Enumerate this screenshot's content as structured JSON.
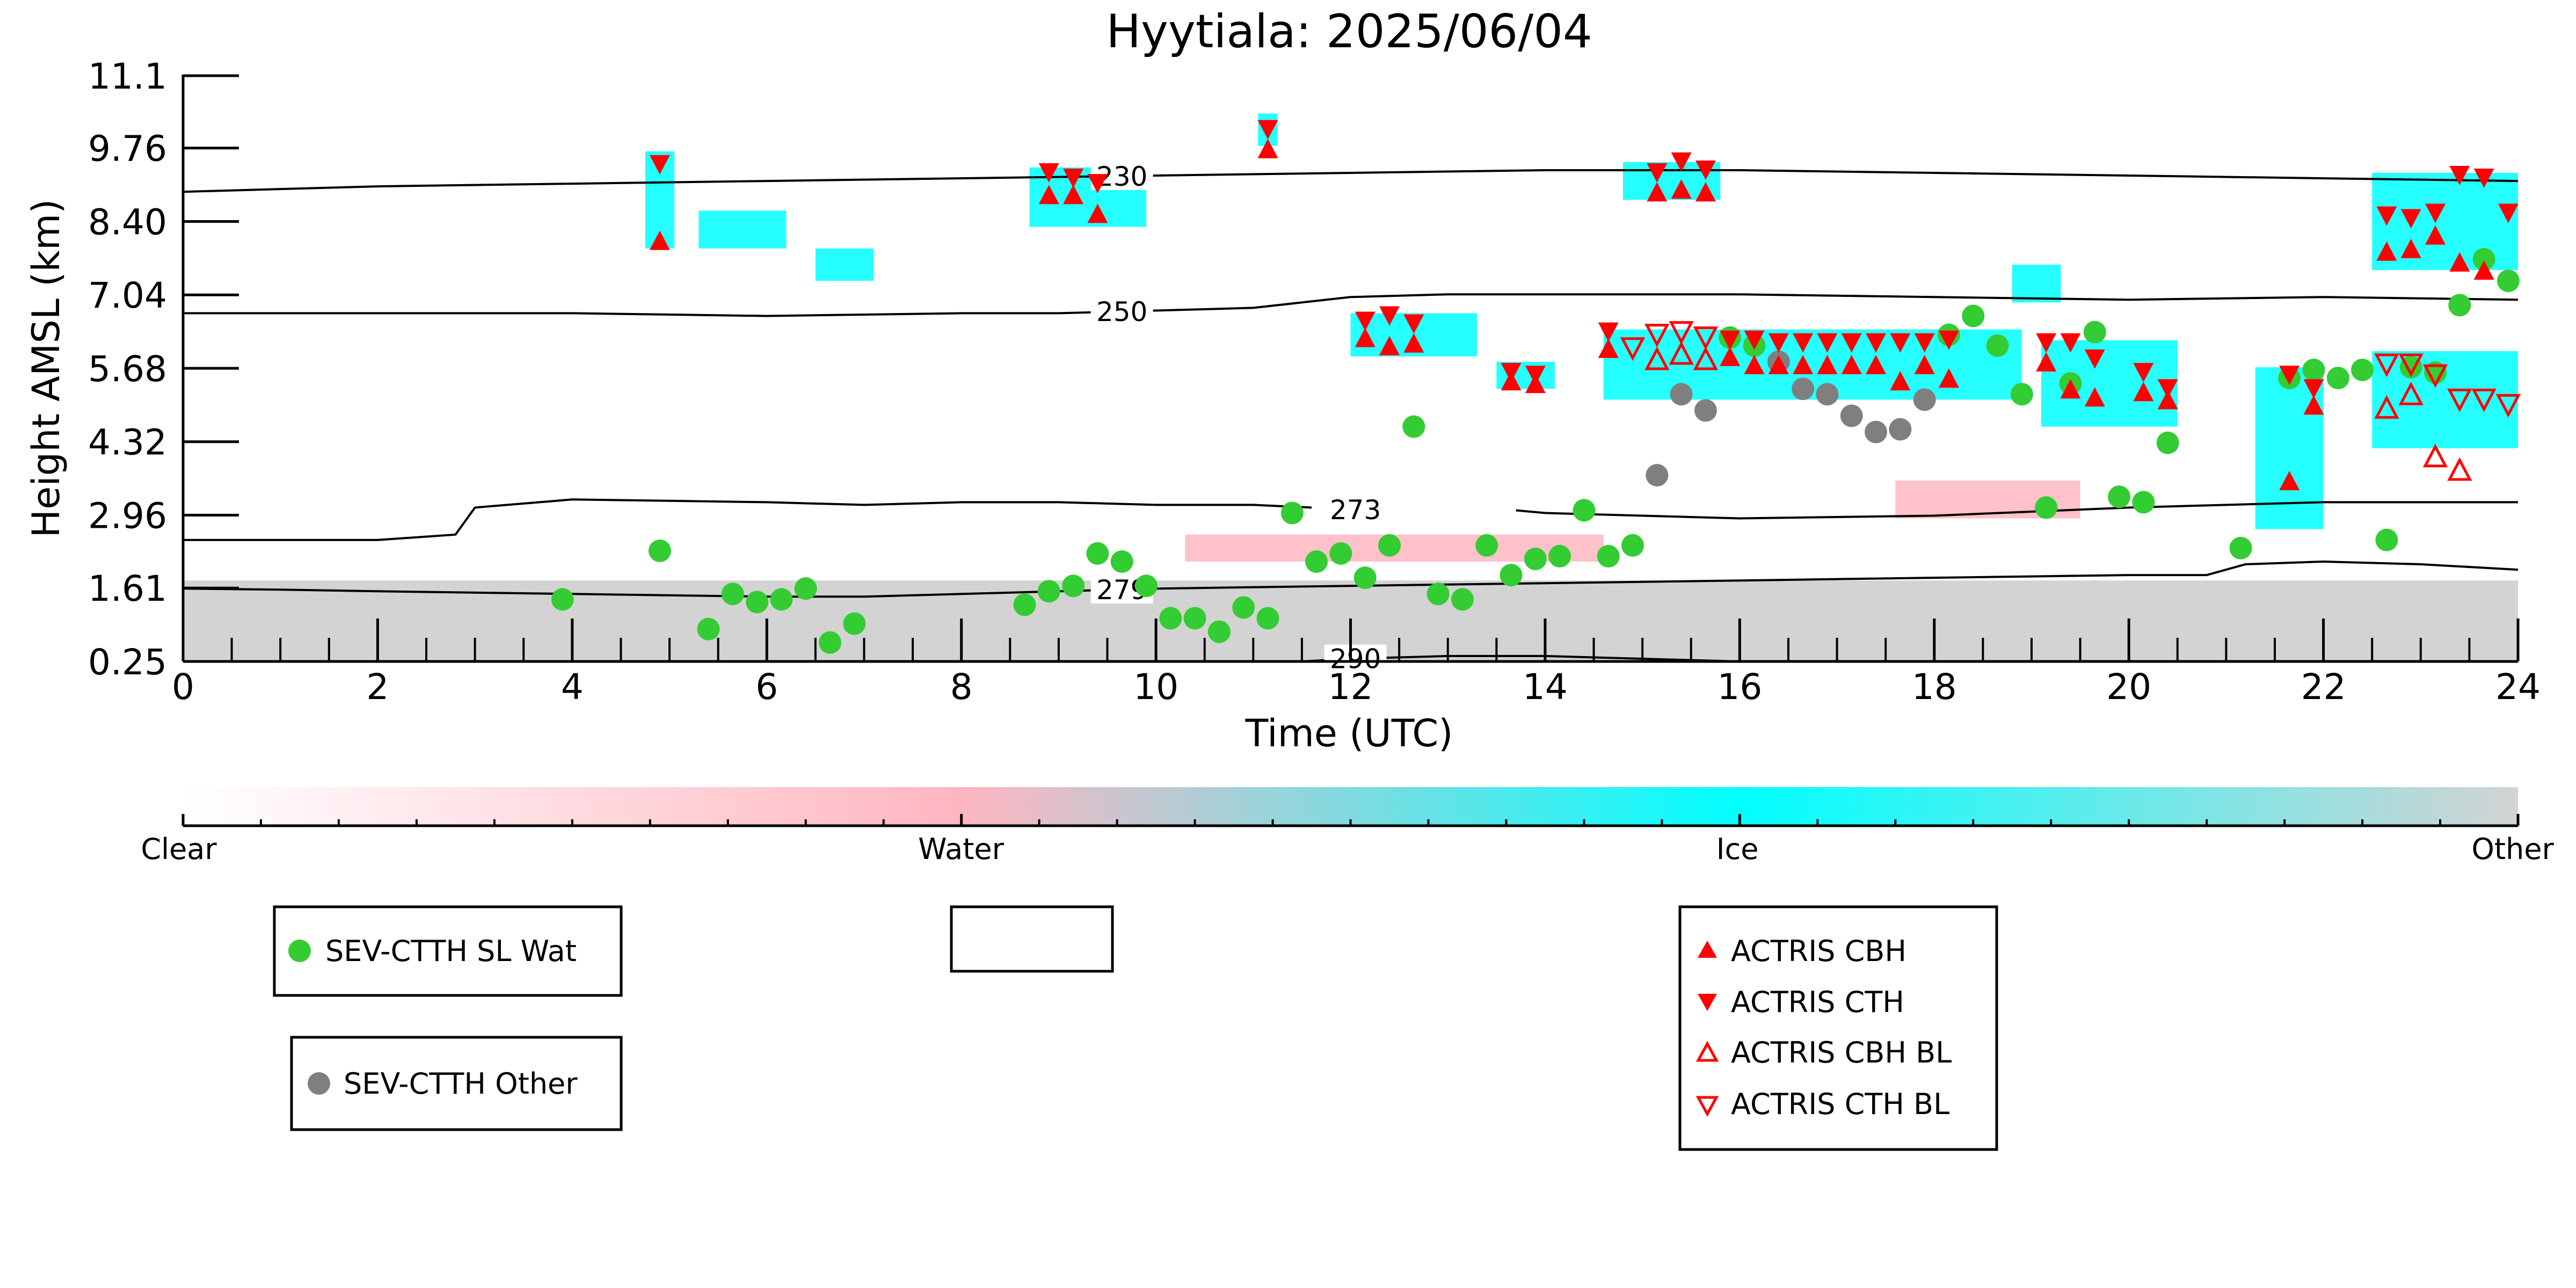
{
  "chart_data": {
    "type": "scatter",
    "title": "Hyytiala: 2025/06/04",
    "xlabel": "Time (UTC)",
    "ylabel": "Height AMSL (km)",
    "xlim": [
      0,
      24
    ],
    "ylim": [
      0.25,
      11.1
    ],
    "x_ticks": [
      "0",
      "2",
      "4",
      "6",
      "8",
      "10",
      "12",
      "14",
      "16",
      "18",
      "20",
      "22",
      "24"
    ],
    "y_ticks": [
      "0.25",
      "1.61",
      "2.96",
      "4.32",
      "5.68",
      "7.04",
      "8.40",
      "9.76",
      "11.1"
    ],
    "grid": false,
    "colorbar": {
      "labels": [
        "Clear",
        "Water",
        "Ice",
        "Other"
      ],
      "colors": {
        "clear": "#ffffff",
        "water": "#ffb6c1",
        "ice": "#00ffff",
        "other": "#d3d3d3"
      }
    },
    "contours": [
      {
        "label": "230",
        "x": [
          0,
          2,
          4,
          6,
          8,
          10,
          12,
          14,
          16,
          18,
          20,
          22,
          24
        ],
        "y": [
          8.95,
          9.05,
          9.1,
          9.15,
          9.2,
          9.25,
          9.3,
          9.35,
          9.35,
          9.3,
          9.25,
          9.2,
          9.15
        ]
      },
      {
        "label": "250",
        "x": [
          0,
          2,
          4,
          6,
          8,
          9,
          10,
          11,
          12,
          13,
          14,
          16,
          18,
          20,
          22,
          24
        ],
        "y": [
          6.7,
          6.7,
          6.7,
          6.65,
          6.7,
          6.7,
          6.75,
          6.8,
          7.0,
          7.05,
          7.05,
          7.05,
          7.0,
          6.95,
          7.0,
          6.95
        ]
      },
      {
        "label": "273",
        "x": [
          0,
          2,
          2.8,
          3,
          4,
          6,
          7,
          8,
          9,
          10,
          11,
          11.6
        ],
        "y": [
          2.5,
          2.5,
          2.6,
          3.1,
          3.25,
          3.2,
          3.15,
          3.2,
          3.2,
          3.15,
          3.15,
          3.1
        ]
      },
      {
        "label": "273",
        "x": [
          13.7,
          14,
          15,
          16,
          18,
          20,
          22,
          24
        ],
        "y": [
          3.05,
          3.0,
          2.95,
          2.9,
          2.95,
          3.1,
          3.2,
          3.2
        ]
      },
      {
        "label": "279",
        "x": [
          0,
          1,
          2,
          4,
          6,
          7,
          8,
          10,
          12,
          14,
          16,
          18,
          20,
          20.8,
          21.2,
          22,
          23,
          24
        ],
        "y": [
          1.6,
          1.58,
          1.55,
          1.5,
          1.45,
          1.45,
          1.5,
          1.6,
          1.65,
          1.7,
          1.75,
          1.8,
          1.85,
          1.85,
          2.05,
          2.1,
          2.05,
          1.95
        ]
      },
      {
        "label": "290",
        "x": [
          11.5,
          12,
          13,
          14,
          15,
          16
        ],
        "y": [
          0.25,
          0.3,
          0.35,
          0.35,
          0.3,
          0.25
        ]
      }
    ],
    "cloud_patches": [
      {
        "class": "ice",
        "x": [
          4.75,
          5.05
        ],
        "y": [
          7.9,
          9.7
        ]
      },
      {
        "class": "ice",
        "x": [
          5.3,
          6.2
        ],
        "y": [
          7.9,
          8.6
        ]
      },
      {
        "class": "ice",
        "x": [
          6.5,
          7.1
        ],
        "y": [
          7.3,
          7.9
        ]
      },
      {
        "class": "ice",
        "x": [
          8.7,
          9.9
        ],
        "y": [
          8.3,
          9.4
        ]
      },
      {
        "class": "ice",
        "x": [
          11.05,
          11.25
        ],
        "y": [
          9.8,
          10.4
        ]
      },
      {
        "class": "ice",
        "x": [
          12.0,
          13.3
        ],
        "y": [
          5.9,
          6.7
        ]
      },
      {
        "class": "ice",
        "x": [
          13.5,
          14.1
        ],
        "y": [
          5.3,
          5.8
        ]
      },
      {
        "class": "ice",
        "x": [
          14.8,
          15.8
        ],
        "y": [
          8.8,
          9.5
        ]
      },
      {
        "class": "ice",
        "x": [
          14.6,
          18.9
        ],
        "y": [
          5.1,
          6.4
        ]
      },
      {
        "class": "ice",
        "x": [
          18.8,
          19.3
        ],
        "y": [
          6.9,
          7.6
        ]
      },
      {
        "class": "ice",
        "x": [
          19.1,
          20.5
        ],
        "y": [
          4.6,
          6.2
        ]
      },
      {
        "class": "ice",
        "x": [
          21.3,
          22.0
        ],
        "y": [
          2.7,
          5.7
        ]
      },
      {
        "class": "ice",
        "x": [
          22.5,
          24.0
        ],
        "y": [
          4.2,
          6.0
        ]
      },
      {
        "class": "ice",
        "x": [
          22.5,
          24.0
        ],
        "y": [
          7.5,
          9.3
        ]
      },
      {
        "class": "water",
        "x": [
          10.3,
          14.6
        ],
        "y": [
          2.1,
          2.6
        ]
      },
      {
        "class": "water",
        "x": [
          17.6,
          19.5
        ],
        "y": [
          2.9,
          3.6
        ]
      },
      {
        "class": "other",
        "x": [
          0,
          24
        ],
        "y": [
          0.25,
          1.75
        ]
      }
    ],
    "series": [
      {
        "name": "SEV-CTTH SL Wat",
        "marker": "circle",
        "color": "#33cc33",
        "x": [
          3.9,
          4.9,
          5.4,
          5.65,
          5.9,
          6.15,
          6.4,
          6.65,
          6.9,
          8.65,
          8.9,
          9.15,
          9.4,
          9.65,
          9.9,
          10.15,
          10.4,
          10.65,
          10.9,
          11.15,
          11.4,
          11.65,
          11.9,
          12.15,
          12.4,
          12.65,
          12.9,
          13.15,
          13.4,
          13.65,
          13.9,
          14.15,
          14.4,
          14.65,
          14.9,
          15.9,
          16.15,
          18.15,
          18.4,
          18.65,
          18.9,
          19.15,
          19.4,
          19.65,
          19.9,
          20.15,
          20.4,
          21.15,
          21.65,
          21.9,
          22.15,
          22.4,
          22.65,
          22.9,
          23.15,
          23.4,
          23.65,
          23.9
        ],
        "y": [
          1.4,
          2.3,
          0.85,
          1.5,
          1.35,
          1.4,
          1.6,
          0.6,
          0.95,
          1.3,
          1.55,
          1.65,
          2.25,
          2.1,
          1.65,
          1.05,
          1.05,
          0.8,
          1.25,
          1.05,
          3.0,
          2.1,
          2.25,
          1.8,
          2.4,
          4.6,
          1.5,
          1.4,
          2.4,
          1.85,
          2.15,
          2.2,
          3.05,
          2.2,
          2.4,
          6.25,
          6.1,
          6.3,
          6.65,
          6.1,
          5.2,
          3.1,
          5.4,
          6.35,
          3.3,
          3.2,
          4.3,
          2.35,
          5.5,
          5.65,
          5.5,
          5.65,
          2.5,
          5.7,
          5.6,
          6.85,
          7.7,
          7.3
        ]
      },
      {
        "name": "SEV-CTTH Other",
        "marker": "circle",
        "color": "#7f7f7f",
        "x": [
          15.15,
          15.4,
          15.65,
          16.4,
          16.65,
          16.9,
          17.15,
          17.4,
          17.65,
          17.9
        ],
        "y": [
          3.7,
          5.2,
          4.9,
          5.8,
          5.3,
          5.2,
          4.8,
          4.5,
          4.55,
          5.1
        ]
      },
      {
        "name": "ACTRIS CBH",
        "marker": "triangle-up",
        "color": "#ff0000",
        "filled": true,
        "x": [
          4.9,
          8.9,
          9.15,
          9.4,
          11.15,
          12.15,
          12.4,
          12.65,
          13.65,
          13.9,
          14.65,
          15.15,
          15.4,
          15.65,
          15.9,
          16.15,
          16.4,
          16.65,
          16.9,
          17.15,
          17.4,
          17.65,
          17.9,
          18.15,
          19.15,
          19.4,
          19.65,
          20.15,
          20.4,
          21.65,
          21.9,
          22.65,
          22.9,
          23.15,
          23.4,
          23.65
        ],
        "y": [
          8.05,
          8.9,
          8.9,
          8.55,
          9.75,
          6.25,
          6.1,
          6.15,
          5.45,
          5.4,
          6.05,
          8.95,
          9.0,
          8.95,
          5.9,
          5.75,
          5.75,
          5.75,
          5.75,
          5.75,
          5.75,
          5.45,
          5.75,
          5.5,
          5.8,
          5.3,
          5.15,
          5.25,
          5.1,
          3.6,
          5.0,
          7.85,
          7.9,
          8.15,
          7.65,
          7.5
        ]
      },
      {
        "name": "ACTRIS CTH",
        "marker": "triangle-down",
        "color": "#ff0000",
        "filled": true,
        "x": [
          4.9,
          8.9,
          9.15,
          9.4,
          11.15,
          12.15,
          12.4,
          12.65,
          13.65,
          13.9,
          14.65,
          15.15,
          15.4,
          15.65,
          15.9,
          16.15,
          16.4,
          16.65,
          16.9,
          17.15,
          17.4,
          17.65,
          17.9,
          18.15,
          19.15,
          19.4,
          19.65,
          20.15,
          20.4,
          21.65,
          21.9,
          22.65,
          22.9,
          23.15,
          23.4,
          23.65,
          23.9
        ],
        "y": [
          9.45,
          9.3,
          9.2,
          9.1,
          10.1,
          6.55,
          6.65,
          6.5,
          5.6,
          5.55,
          6.35,
          9.3,
          9.5,
          9.35,
          6.2,
          6.2,
          6.15,
          6.15,
          6.15,
          6.15,
          6.15,
          6.15,
          6.15,
          6.2,
          6.15,
          6.15,
          5.85,
          5.6,
          5.3,
          5.55,
          5.3,
          8.5,
          8.45,
          8.55,
          9.25,
          9.2,
          8.55
        ]
      },
      {
        "name": "ACTRIS CBH BL",
        "marker": "triangle-up",
        "color": "#ff0000",
        "filled": false,
        "x": [
          15.15,
          15.4,
          15.65,
          22.65,
          22.9,
          23.15,
          23.4
        ],
        "y": [
          5.85,
          5.95,
          5.85,
          4.95,
          5.2,
          4.05,
          3.8
        ]
      },
      {
        "name": "ACTRIS CTH BL",
        "marker": "triangle-down",
        "color": "#ff0000",
        "filled": false,
        "x": [
          14.9,
          15.15,
          15.4,
          15.65,
          22.65,
          22.9,
          23.15,
          23.4,
          23.65,
          23.9
        ],
        "y": [
          6.05,
          6.3,
          6.35,
          6.25,
          5.75,
          5.75,
          5.55,
          5.1,
          5.1,
          5.0
        ]
      }
    ]
  },
  "legends": {
    "wat": {
      "label": "SEV-CTTH SL Wat"
    },
    "other": {
      "label": "SEV-CTTH Other"
    },
    "actris": [
      {
        "label": "ACTRIS CBH"
      },
      {
        "label": "ACTRIS CTH"
      },
      {
        "label": "ACTRIS CBH BL"
      },
      {
        "label": "ACTRIS CTH BL"
      }
    ]
  }
}
